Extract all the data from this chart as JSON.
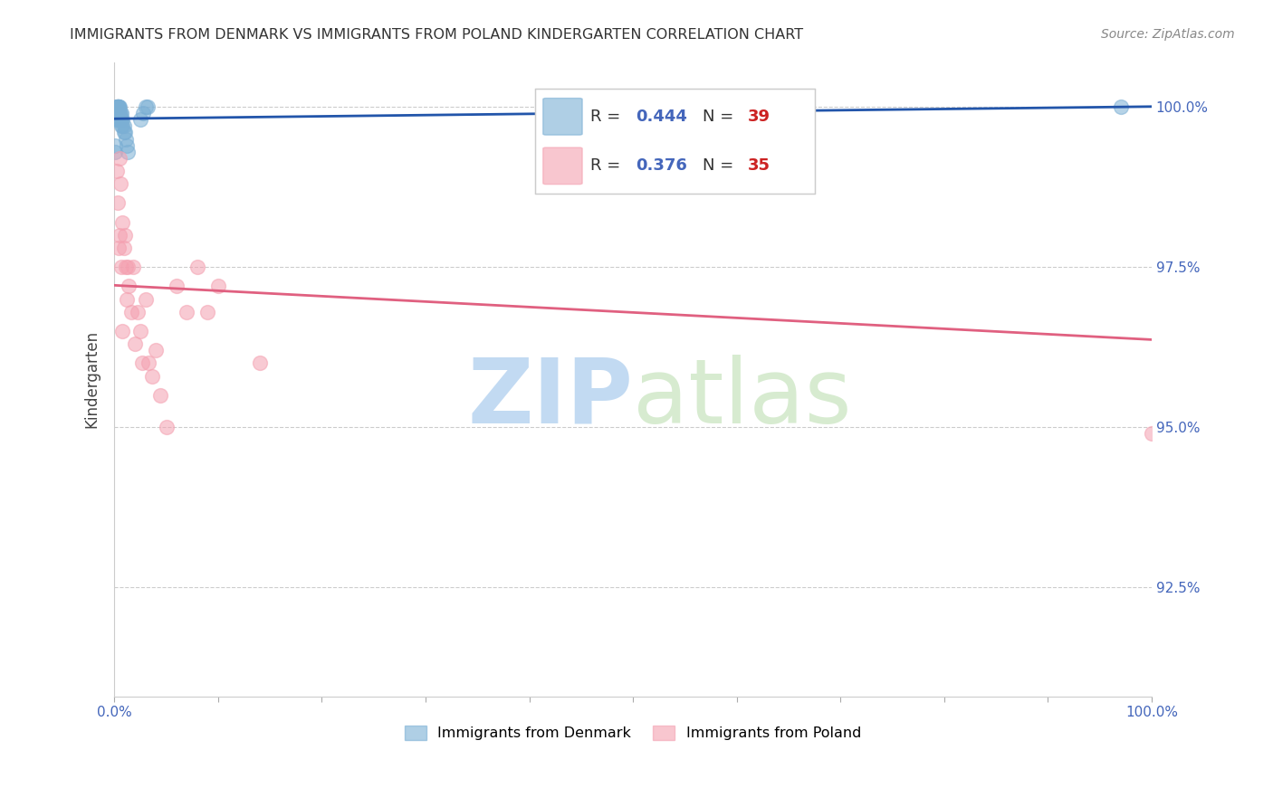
{
  "title": "IMMIGRANTS FROM DENMARK VS IMMIGRANTS FROM POLAND KINDERGARTEN CORRELATION CHART",
  "source": "Source: ZipAtlas.com",
  "ylabel": "Kindergarten",
  "ytick_labels": [
    "100.0%",
    "97.5%",
    "95.0%",
    "92.5%"
  ],
  "ytick_values": [
    1.0,
    0.975,
    0.95,
    0.925
  ],
  "xlim": [
    0.0,
    1.0
  ],
  "ylim": [
    0.908,
    1.007
  ],
  "legend_r_dk": "0.444",
  "legend_n_dk": "39",
  "legend_r_pl": "0.376",
  "legend_n_pl": "35",
  "denmark_color": "#7BAFD4",
  "poland_color": "#F4A0B0",
  "denmark_line_color": "#2255AA",
  "poland_line_color": "#E06080",
  "watermark_zip": "ZIP",
  "watermark_atlas": "atlas",
  "denmark_x": [
    0.001,
    0.001,
    0.002,
    0.002,
    0.002,
    0.002,
    0.003,
    0.003,
    0.003,
    0.003,
    0.003,
    0.003,
    0.003,
    0.004,
    0.004,
    0.004,
    0.004,
    0.004,
    0.005,
    0.005,
    0.005,
    0.006,
    0.006,
    0.007,
    0.007,
    0.007,
    0.008,
    0.008,
    0.009,
    0.009,
    0.01,
    0.011,
    0.012,
    0.013,
    0.025,
    0.028,
    0.03,
    0.032,
    0.97
  ],
  "denmark_y": [
    0.993,
    0.994,
    0.998,
    0.999,
    1.0,
    1.0,
    0.998,
    0.999,
    1.0,
    1.0,
    1.0,
    1.0,
    1.0,
    0.999,
    0.999,
    1.0,
    1.0,
    1.0,
    0.998,
    0.999,
    1.0,
    0.998,
    0.999,
    0.997,
    0.998,
    0.999,
    0.997,
    0.998,
    0.996,
    0.997,
    0.996,
    0.995,
    0.994,
    0.993,
    0.998,
    0.999,
    1.0,
    1.0,
    1.0
  ],
  "poland_x": [
    0.002,
    0.003,
    0.004,
    0.005,
    0.005,
    0.006,
    0.007,
    0.008,
    0.008,
    0.009,
    0.01,
    0.011,
    0.012,
    0.013,
    0.014,
    0.016,
    0.018,
    0.02,
    0.022,
    0.025,
    0.027,
    0.03,
    0.033,
    0.036,
    0.04,
    0.044,
    0.05,
    0.06,
    0.07,
    0.08,
    0.09,
    0.1,
    0.14,
    0.6,
    1.0
  ],
  "poland_y": [
    0.99,
    0.985,
    0.978,
    0.992,
    0.98,
    0.988,
    0.975,
    0.982,
    0.965,
    0.978,
    0.98,
    0.975,
    0.97,
    0.975,
    0.972,
    0.968,
    0.975,
    0.963,
    0.968,
    0.965,
    0.96,
    0.97,
    0.96,
    0.958,
    0.962,
    0.955,
    0.95,
    0.972,
    0.968,
    0.975,
    0.968,
    0.972,
    0.96,
    1.0,
    0.949
  ]
}
